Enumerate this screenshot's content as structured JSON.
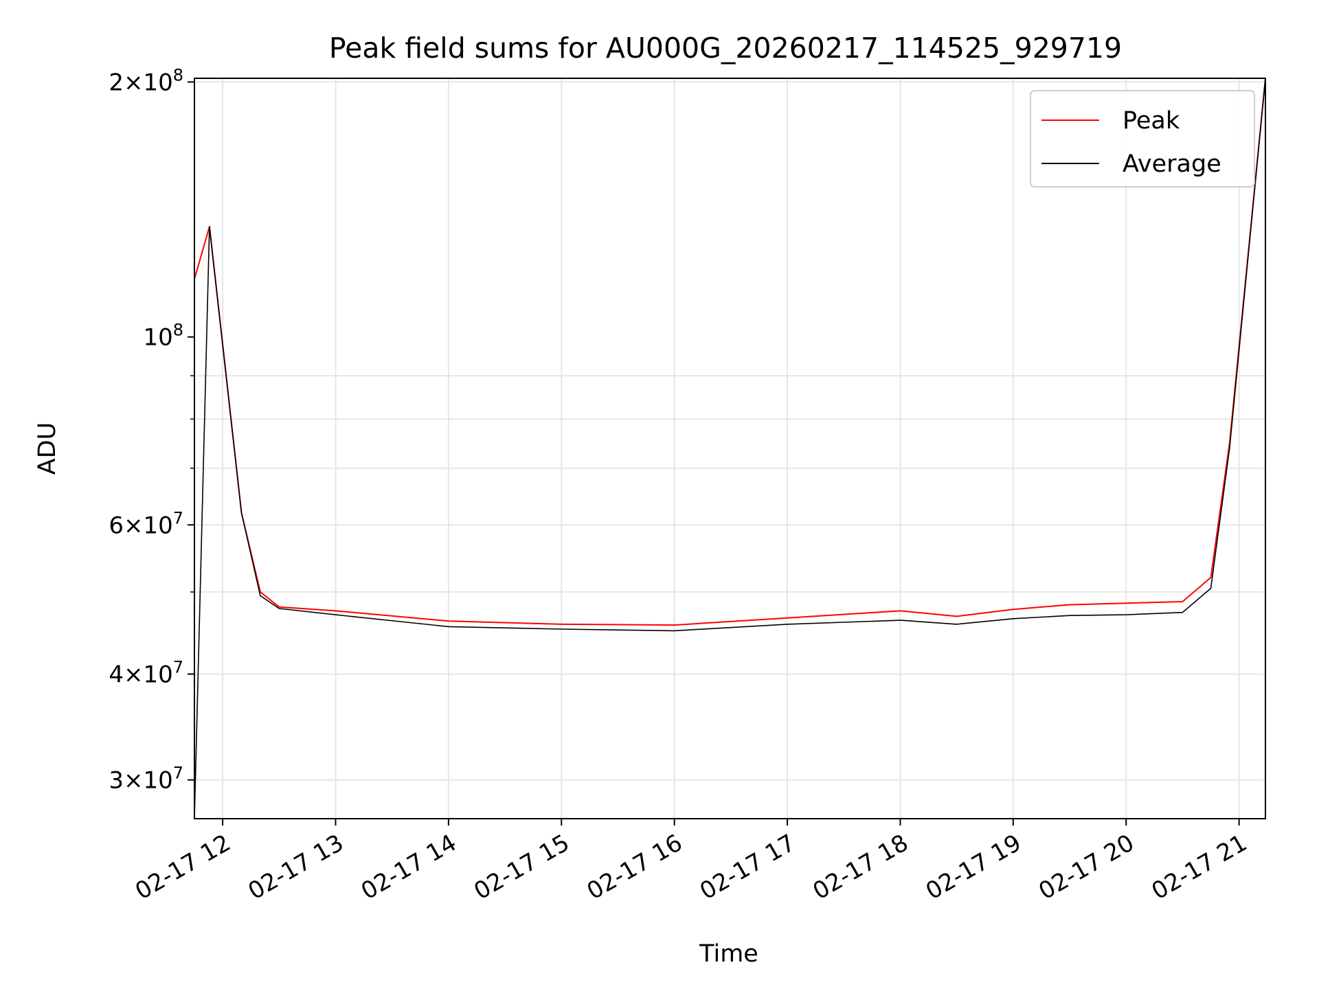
{
  "chart_data": {
    "type": "line",
    "title": "Peak field sums for AU000G_20260217_114525_929719",
    "xlabel": "Time",
    "ylabel": "ADU",
    "y_scale": "log",
    "ylim": [
      27000000,
      202000000
    ],
    "xlim": [
      "2026-02-17 11:45",
      "2026-02-17 21:14"
    ],
    "x_ticks": [
      {
        "t": "2026-02-17 12:00",
        "label": "02-17 12"
      },
      {
        "t": "2026-02-17 13:00",
        "label": "02-17 13"
      },
      {
        "t": "2026-02-17 14:00",
        "label": "02-17 14"
      },
      {
        "t": "2026-02-17 15:00",
        "label": "02-17 15"
      },
      {
        "t": "2026-02-17 16:00",
        "label": "02-17 16"
      },
      {
        "t": "2026-02-17 17:00",
        "label": "02-17 17"
      },
      {
        "t": "2026-02-17 18:00",
        "label": "02-17 18"
      },
      {
        "t": "2026-02-17 19:00",
        "label": "02-17 19"
      },
      {
        "t": "2026-02-17 20:00",
        "label": "02-17 20"
      },
      {
        "t": "2026-02-17 21:00",
        "label": "02-17 21"
      }
    ],
    "y_ticks": [
      {
        "v": 30000000,
        "base": "3",
        "exp": "7"
      },
      {
        "v": 40000000,
        "base": "4",
        "exp": "7"
      },
      {
        "v": 60000000,
        "base": "6",
        "exp": "7"
      },
      {
        "v": 100000000,
        "base": "",
        "exp": "8"
      },
      {
        "v": 200000000,
        "base": "2",
        "exp": "8"
      }
    ],
    "grid": true,
    "legend_position": "top-right",
    "series": [
      {
        "name": "Peak",
        "color": "#ff0000",
        "points": [
          [
            "2026-02-17 11:45",
            117000000
          ],
          [
            "2026-02-17 11:53",
            135000000
          ],
          [
            "2026-02-17 12:00",
            98000000
          ],
          [
            "2026-02-17 12:10",
            62000000
          ],
          [
            "2026-02-17 12:20",
            50000000
          ],
          [
            "2026-02-17 12:30",
            48000000
          ],
          [
            "2026-02-17 13:00",
            47500000
          ],
          [
            "2026-02-17 14:00",
            46200000
          ],
          [
            "2026-02-17 15:00",
            45800000
          ],
          [
            "2026-02-17 16:00",
            45700000
          ],
          [
            "2026-02-17 17:00",
            46600000
          ],
          [
            "2026-02-17 18:00",
            47500000
          ],
          [
            "2026-02-17 18:30",
            46800000
          ],
          [
            "2026-02-17 19:00",
            47700000
          ],
          [
            "2026-02-17 19:30",
            48300000
          ],
          [
            "2026-02-17 20:00",
            48500000
          ],
          [
            "2026-02-17 20:30",
            48700000
          ],
          [
            "2026-02-17 20:45",
            52000000
          ],
          [
            "2026-02-17 20:55",
            75000000
          ],
          [
            "2026-02-17 21:14",
            202000000
          ]
        ]
      },
      {
        "name": "Average",
        "color": "#000000",
        "points": [
          [
            "2026-02-17 11:45",
            27000000
          ],
          [
            "2026-02-17 11:53",
            135000000
          ],
          [
            "2026-02-17 12:00",
            98000000
          ],
          [
            "2026-02-17 12:10",
            62000000
          ],
          [
            "2026-02-17 12:20",
            49500000
          ],
          [
            "2026-02-17 12:30",
            47800000
          ],
          [
            "2026-02-17 13:00",
            47000000
          ],
          [
            "2026-02-17 14:00",
            45500000
          ],
          [
            "2026-02-17 15:00",
            45200000
          ],
          [
            "2026-02-17 16:00",
            45000000
          ],
          [
            "2026-02-17 17:00",
            45800000
          ],
          [
            "2026-02-17 18:00",
            46300000
          ],
          [
            "2026-02-17 18:30",
            45800000
          ],
          [
            "2026-02-17 19:00",
            46500000
          ],
          [
            "2026-02-17 19:30",
            46900000
          ],
          [
            "2026-02-17 20:00",
            47000000
          ],
          [
            "2026-02-17 20:30",
            47300000
          ],
          [
            "2026-02-17 20:45",
            50500000
          ],
          [
            "2026-02-17 20:55",
            74000000
          ],
          [
            "2026-02-17 21:14",
            202000000
          ]
        ]
      }
    ]
  }
}
